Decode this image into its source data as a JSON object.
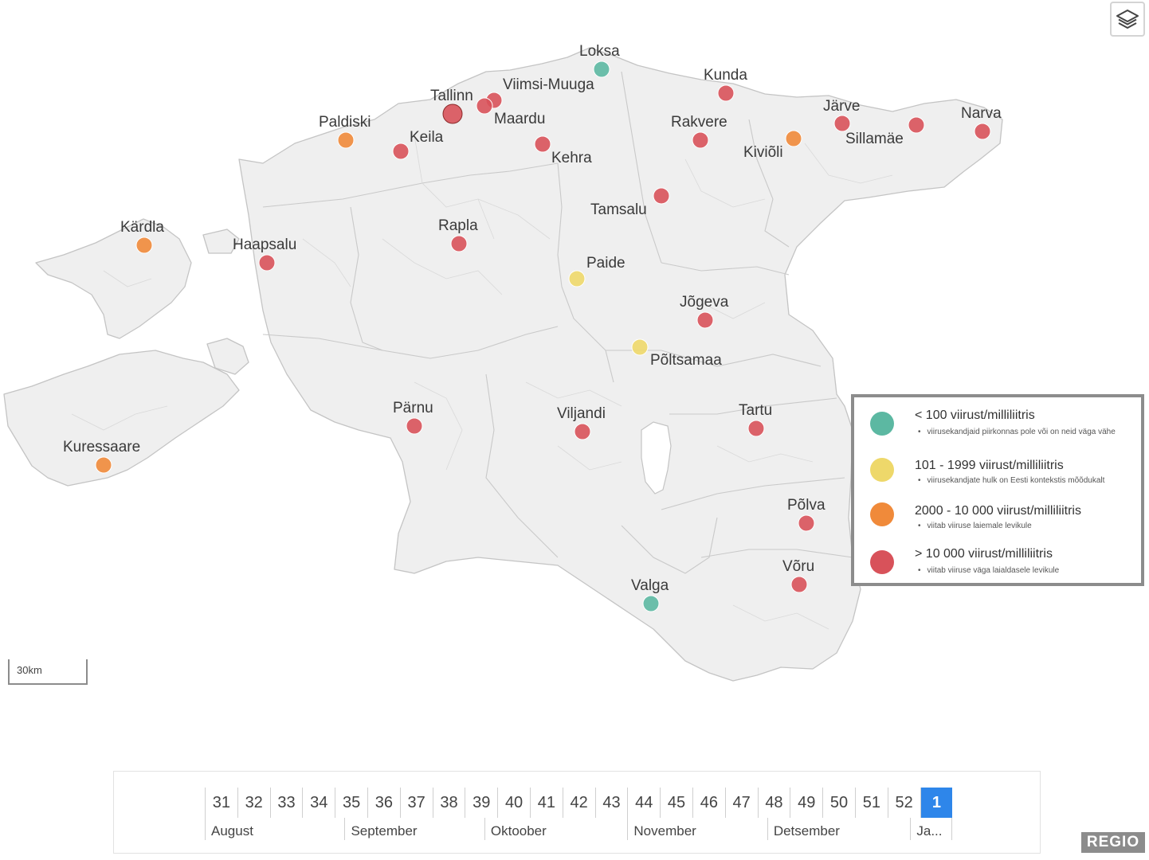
{
  "colors": {
    "teal": "#5cb8a2",
    "yellow": "#eed86a",
    "orange": "#f08a3a",
    "red": "#d8525a",
    "red_dark_stroke": "#8c2a2a",
    "active_week": "#2e86ea"
  },
  "map": {
    "markers": [
      {
        "name": "Loksa",
        "level": "teal"
      },
      {
        "name": "Viimsi-Muuga",
        "level": "red"
      },
      {
        "name": "Tallinn",
        "level": "red",
        "selected": true
      },
      {
        "name": "Maardu",
        "level": "red"
      },
      {
        "name": "Paldiski",
        "level": "orange"
      },
      {
        "name": "Keila",
        "level": "red"
      },
      {
        "name": "Kehra",
        "level": "red"
      },
      {
        "name": "Kunda",
        "level": "red"
      },
      {
        "name": "Rakvere",
        "level": "red"
      },
      {
        "name": "Järve",
        "level": "red"
      },
      {
        "name": "Kiviõli",
        "level": "orange"
      },
      {
        "name": "Sillamäe",
        "level": "red"
      },
      {
        "name": "Narva",
        "level": "red"
      },
      {
        "name": "Tamsalu",
        "level": "red"
      },
      {
        "name": "Kärdla",
        "level": "orange"
      },
      {
        "name": "Haapsalu",
        "level": "red"
      },
      {
        "name": "Rapla",
        "level": "red"
      },
      {
        "name": "Paide",
        "level": "yellow"
      },
      {
        "name": "Jõgeva",
        "level": "red"
      },
      {
        "name": "Põltsamaa",
        "level": "yellow"
      },
      {
        "name": "Pärnu",
        "level": "red"
      },
      {
        "name": "Viljandi",
        "level": "red"
      },
      {
        "name": "Tartu",
        "level": "red"
      },
      {
        "name": "Kuressaare",
        "level": "orange"
      },
      {
        "name": "Põlva",
        "level": "red"
      },
      {
        "name": "Võru",
        "level": "red"
      },
      {
        "name": "Valga",
        "level": "teal"
      }
    ],
    "scale_label": "30km",
    "layers_icon": "layers-icon"
  },
  "legend": {
    "items": [
      {
        "level": "teal",
        "title": "< 100 viirust/milliliitris",
        "note": "viirusekandjaid piirkonnas pole või on neid väga vähe"
      },
      {
        "level": "yellow",
        "title": "101 - 1999 viirust/milliliitris",
        "note": "viirusekandjate hulk on Eesti kontekstis mõõdukalt"
      },
      {
        "level": "orange",
        "title": "2000 - 10 000 viirust/milliliitris",
        "note": "viitab viiruse laiemale levikule"
      },
      {
        "level": "red",
        "title": "> 10 000 viirust/milliliitris",
        "note": "viitab viiruse väga laialdasele levikule"
      }
    ]
  },
  "timeline": {
    "weeks": [
      "31",
      "32",
      "33",
      "34",
      "35",
      "36",
      "37",
      "38",
      "39",
      "40",
      "41",
      "42",
      "43",
      "44",
      "45",
      "46",
      "47",
      "48",
      "49",
      "50",
      "51",
      "52",
      "1"
    ],
    "active_week": "1",
    "months": [
      {
        "label": "August",
        "start": 0,
        "span": 4.3
      },
      {
        "label": "September",
        "start": 4.3,
        "span": 4.3
      },
      {
        "label": "Oktoober",
        "start": 8.6,
        "span": 4.4
      },
      {
        "label": "November",
        "start": 13.0,
        "span": 4.3
      },
      {
        "label": "Detsember",
        "start": 17.3,
        "span": 4.4
      },
      {
        "label": "Ja...",
        "start": 21.7,
        "span": 1.3
      }
    ]
  },
  "branding": {
    "logo": "REGIO"
  }
}
